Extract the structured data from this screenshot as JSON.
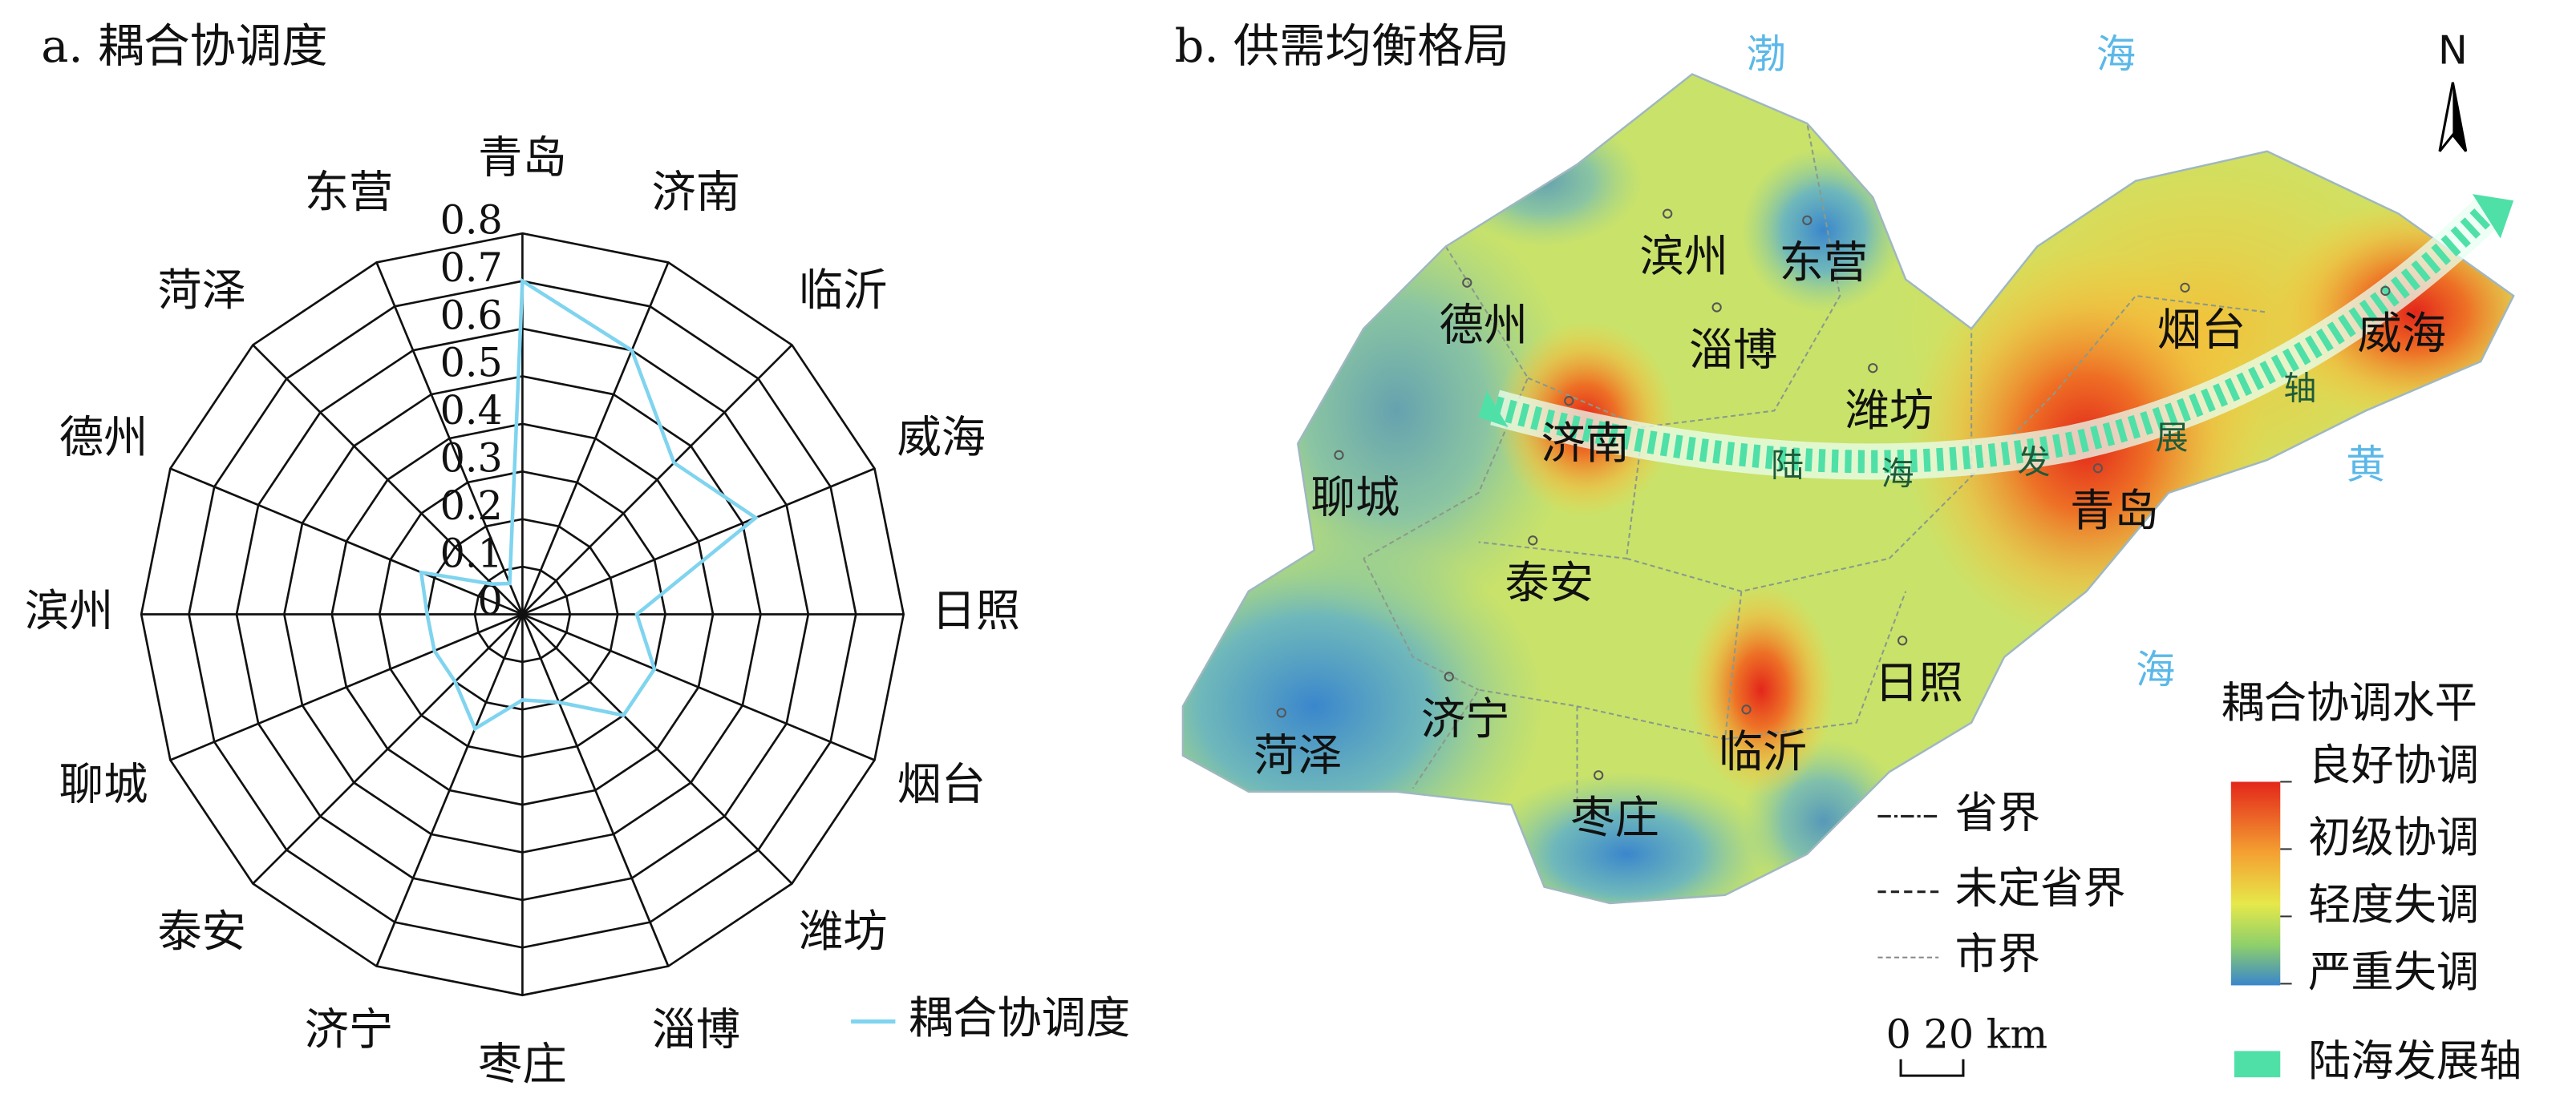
{
  "chart_data": {
    "type": "radar",
    "title": "a. 耦合协调度",
    "categories": [
      "青岛",
      "济南",
      "临沂",
      "威海",
      "日照",
      "烟台",
      "潍坊",
      "淄博",
      "枣庄",
      "济宁",
      "泰安",
      "聊城",
      "滨州",
      "德州",
      "菏泽",
      "东营"
    ],
    "series": [
      {
        "name": "耦合协调度",
        "color": "#7fd4ef",
        "values": [
          0.7,
          0.6,
          0.45,
          0.53,
          0.24,
          0.3,
          0.3,
          0.2,
          0.18,
          0.26,
          0.2,
          0.2,
          0.2,
          0.23,
          0.09,
          0.07
        ]
      }
    ],
    "ylim": [
      0,
      0.8
    ],
    "yticks": [
      0,
      0.1,
      0.2,
      0.3,
      0.4,
      0.5,
      0.6,
      0.7,
      0.8
    ],
    "grid": true
  },
  "map": {
    "title": "b. 供需均衡格局",
    "north": "N",
    "seas": [
      "渤",
      "海",
      "黄",
      "海"
    ],
    "cities": [
      "滨州",
      "东营",
      "德州",
      "淄博",
      "烟台",
      "威海",
      "潍坊",
      "济南",
      "聊城",
      "青岛",
      "泰安",
      "日照",
      "济宁",
      "临沂",
      "菏泽",
      "枣庄"
    ],
    "axis_chars": [
      "陆",
      "海",
      "发",
      "展",
      "轴"
    ],
    "boundaries": [
      "省界",
      "未定省界",
      "市界"
    ],
    "scale": "0 20 km",
    "legend": {
      "title": "耦合协调水平",
      "levels": [
        "良好协调",
        "初级协调",
        "轻度失调",
        "严重失调"
      ],
      "axis": "陆海发展轴"
    }
  }
}
